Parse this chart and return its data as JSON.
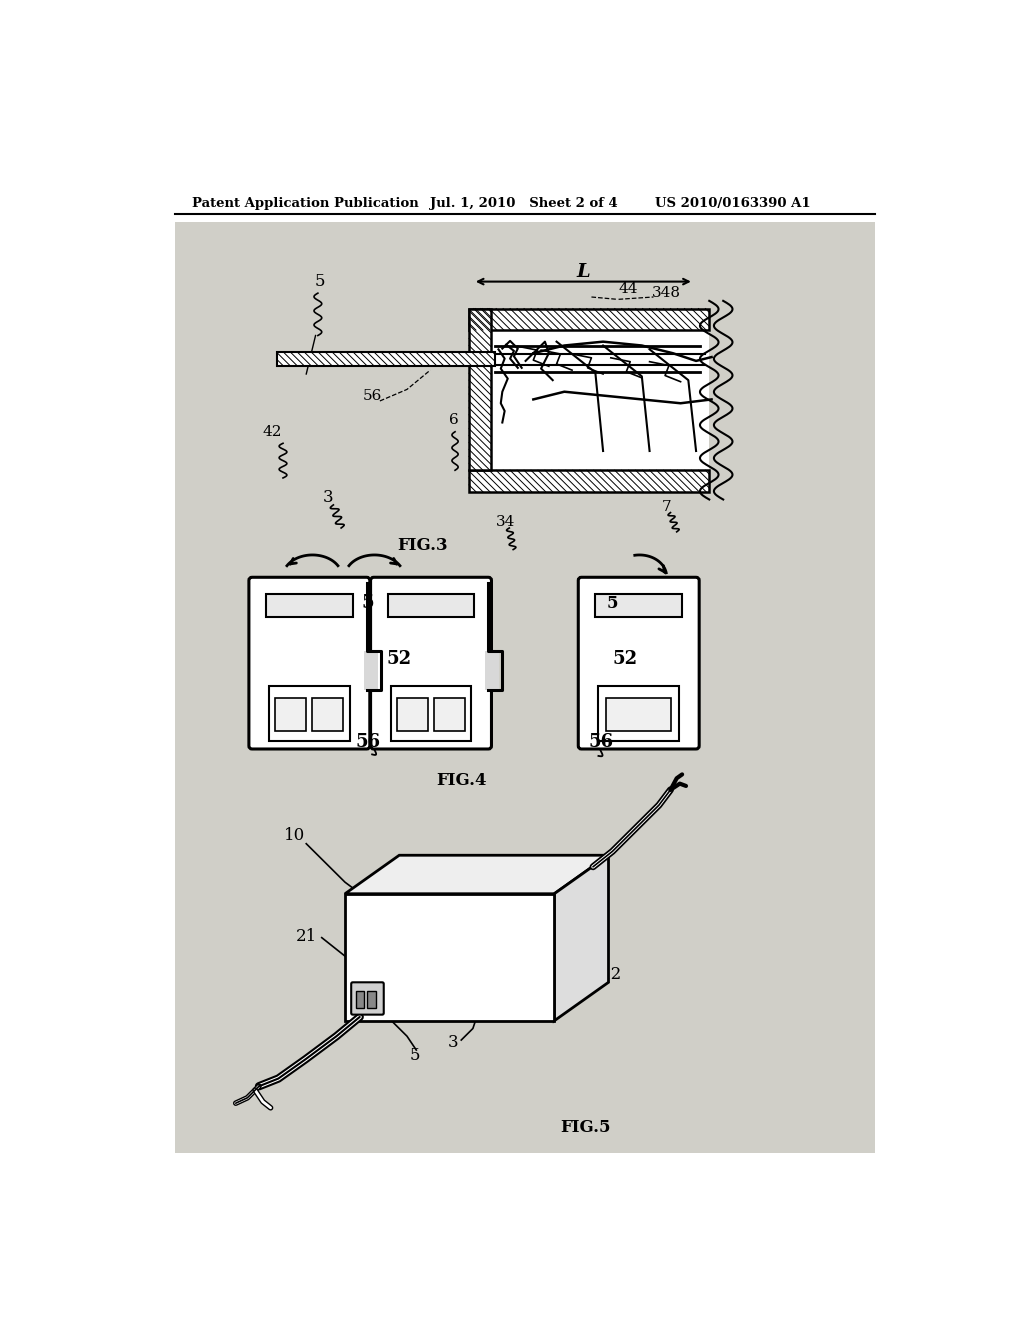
{
  "bg_color": "#ffffff",
  "page_bg": "#d8d8d8",
  "header_left": "Patent Application Publication",
  "header_mid": "Jul. 1, 2010   Sheet 2 of 4",
  "header_right": "US 2010/0163390 A1",
  "fig3_label": "FIG.3",
  "fig4_label": "FIG.4",
  "fig5_label": "FIG.5"
}
